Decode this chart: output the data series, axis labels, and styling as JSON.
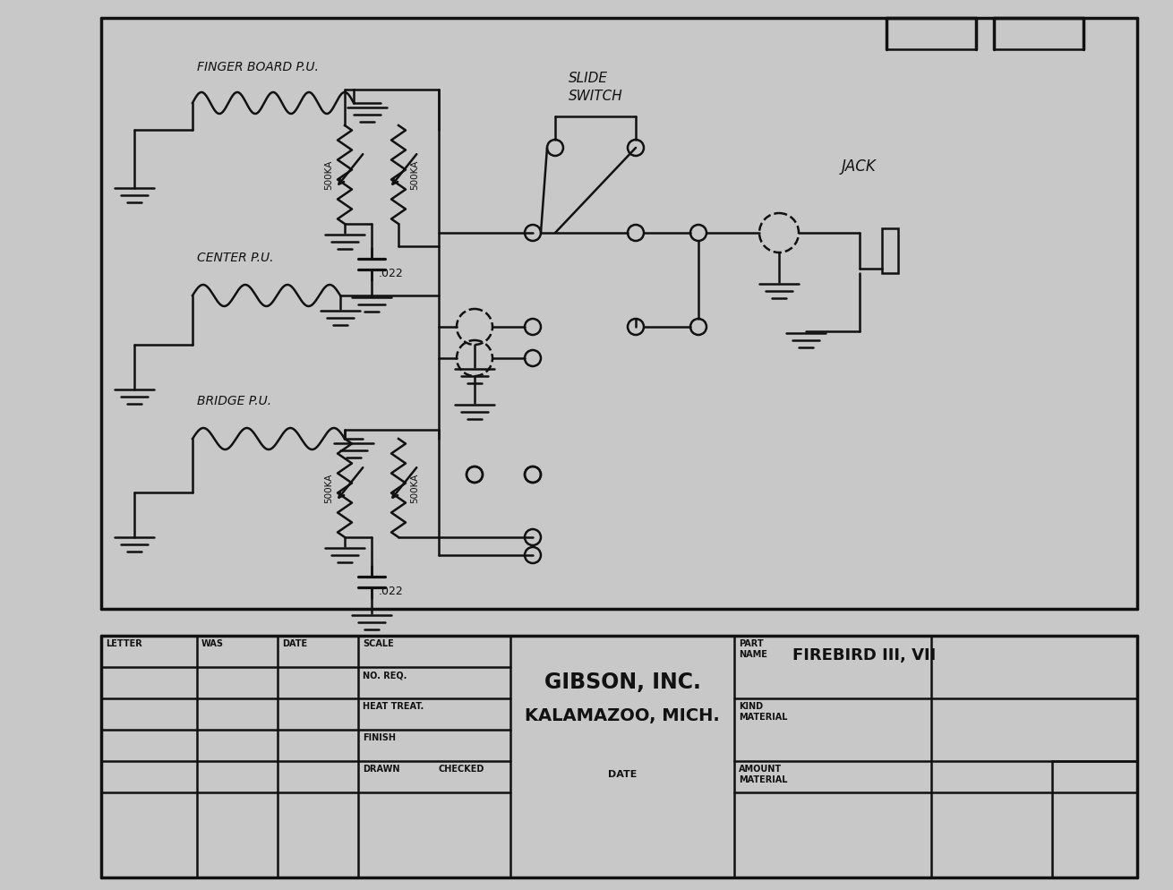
{
  "bg_color": "#c8c8c8",
  "fg_color": "#111111",
  "company": "GIBSON, INC.",
  "location": "KALAMAZOO, MICH.",
  "part_name": "FIREBIRD III, VII",
  "labels": {
    "finger_board": "FINGER BOARD P.U.",
    "center": "CENTER P.U.",
    "bridge": "BRIDGE P.U.",
    "slide_switch_1": "SLIDE",
    "slide_switch_2": "SWITCH",
    "jack": "JACK",
    "cap1": ".022",
    "cap2": ".022",
    "pot_top_left": "500KA",
    "pot_top_right": "500KA",
    "pot_bot_left": "500KA",
    "pot_bot_right": "500KA"
  },
  "footer": {
    "letter": "LETTER",
    "was": "WAS",
    "date": "DATE",
    "scale": "SCALE",
    "no_req": "NO. REQ.",
    "heat_treat": "HEAT TREAT.",
    "finish": "FINISH",
    "drawn": "DRAWN",
    "checked": "CHECKED",
    "date_label": "DATE",
    "part_label1": "PART",
    "part_label2": "NAME",
    "kind": "KIND",
    "material1": "MATERIAL",
    "amount": "AMOUNT",
    "material2": "MATERIAL"
  }
}
